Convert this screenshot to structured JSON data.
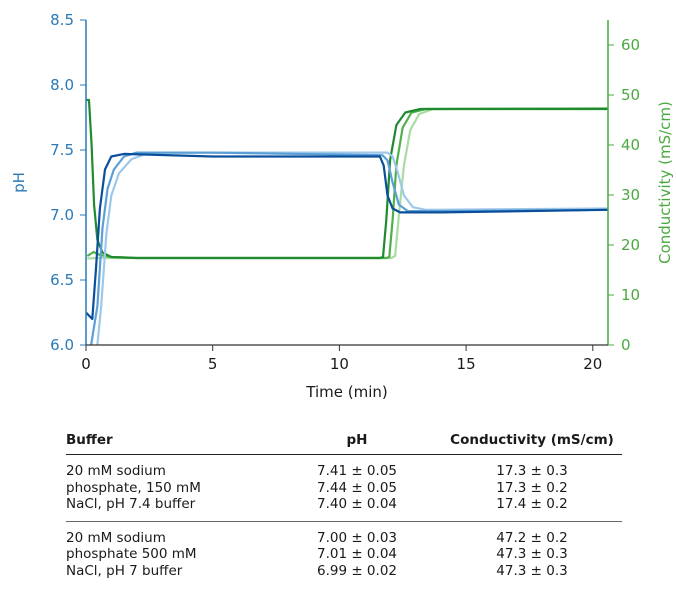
{
  "chart_data": {
    "type": "line",
    "xlabel": "Time (min)",
    "ylabel_left": "pH",
    "ylabel_right": "Conductivity (mS/cm)",
    "xlim": [
      0,
      20.6
    ],
    "ylim_left": [
      6.0,
      8.5
    ],
    "ylim_right": [
      0,
      65
    ],
    "x_ticks": [
      0,
      5,
      10,
      15,
      20
    ],
    "y_ticks_left": [
      "6.0",
      "6.5",
      "7.0",
      "7.5",
      "8.0",
      "8.5"
    ],
    "y_ticks_right": [
      0,
      10,
      20,
      30,
      40,
      50,
      60
    ],
    "grid": false,
    "colors": {
      "left_axis": "#2a7ab8",
      "right_axis": "#4aaa40",
      "ph_series": [
        "#0b4f9c",
        "#5b9fd6",
        "#9ec8ea"
      ],
      "cond_series": [
        "#1f8a2f",
        "#4fb04a",
        "#a8dca0"
      ]
    },
    "series": [
      {
        "axis": "left",
        "points": [
          [
            0,
            6.25
          ],
          [
            0.25,
            6.2
          ],
          [
            0.4,
            6.6
          ],
          [
            0.55,
            7.05
          ],
          [
            0.75,
            7.35
          ],
          [
            1.0,
            7.45
          ],
          [
            1.5,
            7.47
          ],
          [
            5,
            7.45
          ],
          [
            11.6,
            7.45
          ],
          [
            11.75,
            7.38
          ],
          [
            11.9,
            7.15
          ],
          [
            12.1,
            7.05
          ],
          [
            12.4,
            7.02
          ],
          [
            14,
            7.02
          ],
          [
            20.6,
            7.04
          ]
        ]
      },
      {
        "axis": "left",
        "points": [
          [
            0.2,
            6.0
          ],
          [
            0.45,
            6.3
          ],
          [
            0.65,
            6.9
          ],
          [
            0.85,
            7.2
          ],
          [
            1.1,
            7.35
          ],
          [
            1.5,
            7.45
          ],
          [
            2,
            7.48
          ],
          [
            5,
            7.48
          ],
          [
            11.7,
            7.46
          ],
          [
            11.9,
            7.42
          ],
          [
            12.1,
            7.25
          ],
          [
            12.35,
            7.08
          ],
          [
            12.7,
            7.03
          ],
          [
            14,
            7.03
          ],
          [
            20.6,
            7.04
          ]
        ]
      },
      {
        "axis": "left",
        "points": [
          [
            0.45,
            6.0
          ],
          [
            0.6,
            6.3
          ],
          [
            0.8,
            6.85
          ],
          [
            1.0,
            7.15
          ],
          [
            1.3,
            7.32
          ],
          [
            1.8,
            7.43
          ],
          [
            2.5,
            7.48
          ],
          [
            5,
            7.48
          ],
          [
            11.9,
            7.48
          ],
          [
            12.1,
            7.45
          ],
          [
            12.3,
            7.33
          ],
          [
            12.55,
            7.15
          ],
          [
            12.9,
            7.06
          ],
          [
            13.4,
            7.04
          ],
          [
            20.6,
            7.05
          ]
        ]
      },
      {
        "axis": "right",
        "points": [
          [
            0,
            49
          ],
          [
            0.12,
            49
          ],
          [
            0.22,
            40
          ],
          [
            0.32,
            28
          ],
          [
            0.45,
            21
          ],
          [
            0.65,
            18.5
          ],
          [
            1.0,
            17.6
          ],
          [
            2,
            17.4
          ],
          [
            11.6,
            17.4
          ],
          [
            11.72,
            17.6
          ],
          [
            11.85,
            25
          ],
          [
            12.0,
            37
          ],
          [
            12.25,
            44
          ],
          [
            12.6,
            46.5
          ],
          [
            13.2,
            47.2
          ],
          [
            20.6,
            47.2
          ]
        ]
      },
      {
        "axis": "right",
        "points": [
          [
            0.05,
            17.8
          ],
          [
            0.3,
            18.6
          ],
          [
            0.55,
            18.0
          ],
          [
            1.0,
            17.6
          ],
          [
            2,
            17.4
          ],
          [
            11.85,
            17.4
          ],
          [
            11.97,
            17.6
          ],
          [
            12.1,
            25
          ],
          [
            12.25,
            36
          ],
          [
            12.5,
            43.5
          ],
          [
            12.85,
            46.5
          ],
          [
            13.4,
            47.2
          ],
          [
            20.6,
            47.3
          ]
        ]
      },
      {
        "axis": "right",
        "points": [
          [
            0.05,
            17.3
          ],
          [
            0.5,
            17.4
          ],
          [
            2,
            17.4
          ],
          [
            12.05,
            17.4
          ],
          [
            12.2,
            17.8
          ],
          [
            12.35,
            26
          ],
          [
            12.55,
            36
          ],
          [
            12.8,
            43
          ],
          [
            13.15,
            46.2
          ],
          [
            13.7,
            47.2
          ],
          [
            20.6,
            47.3
          ]
        ]
      }
    ],
    "table": {
      "headers": [
        "Buffer",
        "pH",
        "Conductivity (mS/cm)"
      ],
      "groups": [
        {
          "rows": [
            [
              "20 mM sodium",
              "7.41 ± 0.05",
              "17.3 ± 0.3"
            ],
            [
              "phosphate, 150 mM",
              "7.44 ± 0.05",
              "17.3 ± 0.2"
            ],
            [
              "NaCl, pH 7.4 buffer",
              "7.40 ± 0.04",
              "17.4 ± 0.2"
            ]
          ]
        },
        {
          "rows": [
            [
              "20 mM sodium",
              "7.00 ± 0.03",
              "47.2 ± 0.2"
            ],
            [
              "phosphate 500 mM",
              "7.01 ± 0.04",
              "47.3 ± 0.3"
            ],
            [
              "NaCl, pH 7 buffer",
              "6.99 ± 0.02",
              "47.3 ± 0.3"
            ]
          ]
        }
      ]
    }
  }
}
